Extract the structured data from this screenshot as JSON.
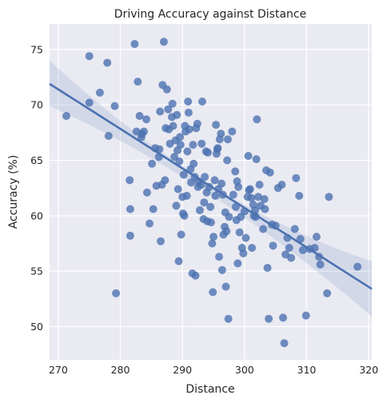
{
  "chart_data": {
    "type": "scatter",
    "title": "Driving Accuracy against Distance",
    "xlabel": "Distance",
    "ylabel": "Accuracy (%)",
    "xlim": [
      268.6,
      320.5
    ],
    "ylim": [
      47.0,
      77.3
    ],
    "xticks": [
      270,
      280,
      290,
      300,
      310,
      320
    ],
    "yticks": [
      50,
      55,
      60,
      65,
      70,
      75
    ],
    "grid": true,
    "background": "#eaeaf2",
    "colors": {
      "points": "#4c72b0",
      "line": "#4c72b0",
      "band": "#4c72b0"
    },
    "regression": {
      "x_start": 268.6,
      "y_start": 71.9,
      "x_end": 320.5,
      "y_end": 53.4,
      "ci_start": [
        69.9,
        74.0
      ],
      "ci_end": [
        50.9,
        55.9
      ],
      "ci_center": [
        61.9,
        62.8
      ]
    },
    "points": [
      [
        271.3,
        69.0
      ],
      [
        275.0,
        74.4
      ],
      [
        275.0,
        70.2
      ],
      [
        276.7,
        71.1
      ],
      [
        277.9,
        73.8
      ],
      [
        278.1,
        67.2
      ],
      [
        279.1,
        69.9
      ],
      [
        279.3,
        53.0
      ],
      [
        281.5,
        63.2
      ],
      [
        281.6,
        60.6
      ],
      [
        281.6,
        58.2
      ],
      [
        282.3,
        75.5
      ],
      [
        282.6,
        67.6
      ],
      [
        282.8,
        72.1
      ],
      [
        283.1,
        69.0
      ],
      [
        283.4,
        67.1
      ],
      [
        283.5,
        67.4
      ],
      [
        283.8,
        67.6
      ],
      [
        284.2,
        68.7
      ],
      [
        284.3,
        62.1
      ],
      [
        284.7,
        59.3
      ],
      [
        285.1,
        64.7
      ],
      [
        285.3,
        60.6
      ],
      [
        285.6,
        66.1
      ],
      [
        285.8,
        62.7
      ],
      [
        286.2,
        65.3
      ],
      [
        286.3,
        66.0
      ],
      [
        286.4,
        69.4
      ],
      [
        286.5,
        57.7
      ],
      [
        286.7,
        62.8
      ],
      [
        286.8,
        71.8
      ],
      [
        287.0,
        75.7
      ],
      [
        287.2,
        63.2
      ],
      [
        287.3,
        67.9
      ],
      [
        287.5,
        71.4
      ],
      [
        287.7,
        69.6
      ],
      [
        287.8,
        67.8
      ],
      [
        288.0,
        66.5
      ],
      [
        288.3,
        68.9
      ],
      [
        288.4,
        70.1
      ],
      [
        288.5,
        68.1
      ],
      [
        288.7,
        65.3
      ],
      [
        288.9,
        66.8
      ],
      [
        289.0,
        60.9
      ],
      [
        289.1,
        69.1
      ],
      [
        289.2,
        65.9
      ],
      [
        289.3,
        62.4
      ],
      [
        289.4,
        55.9
      ],
      [
        289.5,
        64.9
      ],
      [
        289.6,
        67.1
      ],
      [
        289.7,
        66.4
      ],
      [
        289.8,
        58.3
      ],
      [
        290.0,
        61.7
      ],
      [
        290.1,
        60.2
      ],
      [
        290.2,
        63.7
      ],
      [
        290.3,
        60.0
      ],
      [
        290.4,
        68.1
      ],
      [
        290.5,
        67.6
      ],
      [
        290.7,
        61.8
      ],
      [
        290.8,
        65.8
      ],
      [
        290.9,
        70.3
      ],
      [
        291.0,
        69.3
      ],
      [
        291.1,
        67.8
      ],
      [
        291.3,
        64.2
      ],
      [
        291.4,
        63.0
      ],
      [
        291.6,
        54.8
      ],
      [
        291.7,
        66.4
      ],
      [
        291.8,
        64.7
      ],
      [
        292.0,
        63.5
      ],
      [
        292.1,
        54.6
      ],
      [
        292.2,
        67.9
      ],
      [
        292.4,
        68.3
      ],
      [
        292.5,
        62.6
      ],
      [
        292.6,
        63.1
      ],
      [
        292.8,
        60.5
      ],
      [
        293.0,
        62.8
      ],
      [
        293.1,
        66.5
      ],
      [
        293.2,
        70.3
      ],
      [
        293.4,
        59.7
      ],
      [
        293.5,
        61.2
      ],
      [
        293.6,
        63.5
      ],
      [
        293.8,
        65.8
      ],
      [
        293.9,
        62.1
      ],
      [
        294.0,
        59.5
      ],
      [
        294.1,
        65.7
      ],
      [
        294.3,
        62.6
      ],
      [
        294.5,
        60.8
      ],
      [
        294.6,
        59.4
      ],
      [
        294.8,
        57.5
      ],
      [
        294.9,
        53.1
      ],
      [
        295.0,
        58.1
      ],
      [
        295.2,
        63.2
      ],
      [
        295.3,
        61.8
      ],
      [
        295.4,
        68.2
      ],
      [
        295.5,
        65.6
      ],
      [
        295.6,
        66.0
      ],
      [
        295.7,
        66.1
      ],
      [
        295.8,
        62.4
      ],
      [
        295.9,
        56.3
      ],
      [
        296.0,
        66.9
      ],
      [
        296.2,
        67.4
      ],
      [
        296.3,
        62.9
      ],
      [
        296.4,
        55.1
      ],
      [
        296.5,
        61.9
      ],
      [
        296.6,
        58.3
      ],
      [
        296.8,
        59.0
      ],
      [
        296.9,
        60.3
      ],
      [
        297.0,
        53.6
      ],
      [
        297.1,
        58.6
      ],
      [
        297.2,
        65.0
      ],
      [
        297.3,
        66.9
      ],
      [
        297.4,
        50.7
      ],
      [
        297.5,
        59.9
      ],
      [
        298.0,
        67.6
      ],
      [
        298.2,
        61.9
      ],
      [
        298.5,
        64.0
      ],
      [
        298.6,
        60.8
      ],
      [
        298.7,
        59.6
      ],
      [
        298.8,
        63.1
      ],
      [
        298.9,
        55.7
      ],
      [
        299.0,
        62.6
      ],
      [
        299.2,
        58.5
      ],
      [
        299.4,
        59.9
      ],
      [
        299.6,
        57.1
      ],
      [
        299.8,
        56.6
      ],
      [
        300.0,
        60.4
      ],
      [
        300.2,
        58.0
      ],
      [
        300.5,
        61.7
      ],
      [
        300.6,
        65.4
      ],
      [
        300.7,
        62.3
      ],
      [
        300.9,
        62.4
      ],
      [
        301.1,
        61.6
      ],
      [
        301.2,
        57.1
      ],
      [
        301.4,
        61.0
      ],
      [
        301.5,
        60.0
      ],
      [
        301.7,
        60.5
      ],
      [
        301.8,
        59.9
      ],
      [
        301.9,
        65.1
      ],
      [
        302.0,
        68.7
      ],
      [
        302.2,
        61.7
      ],
      [
        302.4,
        62.8
      ],
      [
        302.6,
        60.9
      ],
      [
        303.0,
        58.8
      ],
      [
        303.2,
        61.5
      ],
      [
        303.3,
        60.6
      ],
      [
        303.5,
        64.1
      ],
      [
        303.7,
        55.3
      ],
      [
        303.9,
        50.7
      ],
      [
        304.1,
        63.9
      ],
      [
        304.4,
        59.2
      ],
      [
        304.6,
        57.3
      ],
      [
        305.0,
        59.1
      ],
      [
        305.4,
        62.5
      ],
      [
        306.0,
        62.8
      ],
      [
        306.2,
        50.8
      ],
      [
        306.4,
        48.5
      ],
      [
        306.6,
        56.5
      ],
      [
        306.9,
        58.0
      ],
      [
        307.2,
        57.1
      ],
      [
        307.5,
        56.2
      ],
      [
        308.1,
        58.8
      ],
      [
        308.3,
        63.4
      ],
      [
        308.8,
        61.8
      ],
      [
        309.0,
        57.9
      ],
      [
        309.4,
        56.9
      ],
      [
        309.9,
        51.0
      ],
      [
        310.5,
        57.0
      ],
      [
        311.3,
        57.1
      ],
      [
        311.6,
        58.1
      ],
      [
        312.0,
        56.3
      ],
      [
        312.2,
        55.6
      ],
      [
        313.3,
        53.0
      ],
      [
        313.6,
        61.7
      ],
      [
        318.2,
        55.4
      ]
    ]
  }
}
